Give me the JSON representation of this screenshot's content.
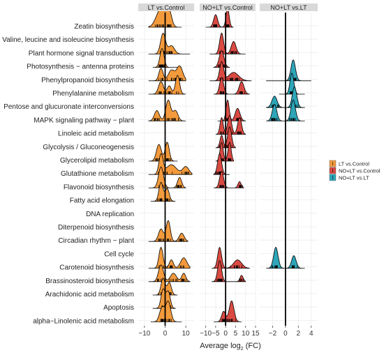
{
  "chart_data": {
    "type": "ridgeline",
    "xlabel": "Average log",
    "xlabel_sub": "2",
    "xlabel_suffix": " (FC)",
    "pathways": [
      "Zeatin biosynthesis",
      "Valine, leucine and isoleucine biosynthesis",
      "Plant hormone signal transduction",
      "Photosynthesis − antenna proteins",
      "Phenylpropanoid biosynthesis",
      "Phenylalanine metabolism",
      "Pentose and glucuronate interconversions",
      "MAPK signaling pathway − plant",
      "Linoleic acid metabolism",
      "Glycolysis / Gluconeogenesis",
      "Glycerolipid metabolism",
      "Glutathione metabolism",
      "Flavonoid biosynthesis",
      "Fatty acid elongation",
      "DNA replication",
      "Diterpenoid biosynthesis",
      "Circadian rhythm − plant",
      "Cell cycle",
      "Carotenoid biosynthesis",
      "Brassinosteroid biosynthesis",
      "Arachidonic acid metabolism",
      "Apoptosis",
      "alpha−Linolenic acid metabolism"
    ],
    "panels": [
      {
        "name": "LT vs.Control",
        "color": "#F39A3C",
        "xlim": [
          -13,
          14
        ],
        "ticks": [
          -10,
          0,
          10
        ],
        "rows": [
          {
            "pathway": 0,
            "peaks": [
              {
                "m": -2,
                "s": 2.2,
                "h": 0.9
              },
              {
                "m": 2,
                "s": 1.2,
                "h": 0.7
              }
            ],
            "range": [
              -8,
              8
            ]
          },
          {
            "pathway": 2,
            "peaks": [
              {
                "m": -1,
                "s": 1.2,
                "h": 1.0
              },
              {
                "m": 3,
                "s": 1.5,
                "h": 0.4
              }
            ],
            "range": [
              -8,
              12
            ]
          },
          {
            "pathway": 3,
            "peaks": [
              {
                "m": -1.5,
                "s": 1.0,
                "h": 0.9
              }
            ],
            "range": [
              -6,
              8
            ]
          },
          {
            "pathway": 4,
            "peaks": [
              {
                "m": -2,
                "s": 1.0,
                "h": 0.6
              },
              {
                "m": 3,
                "s": 1.5,
                "h": 0.5
              },
              {
                "m": 7,
                "s": 1.5,
                "h": 0.7
              }
            ],
            "range": [
              -8,
              10
            ]
          },
          {
            "pathway": 5,
            "peaks": [
              {
                "m": -2,
                "s": 1.2,
                "h": 0.6
              },
              {
                "m": 2,
                "s": 1.0,
                "h": 0.4
              },
              {
                "m": 6,
                "s": 1.0,
                "h": 0.9
              }
            ],
            "range": [
              -8,
              10
            ]
          },
          {
            "pathway": 7,
            "peaks": [
              {
                "m": -4,
                "s": 1.2,
                "h": 0.5
              },
              {
                "m": 1.5,
                "s": 1.2,
                "h": 1.0
              },
              {
                "m": 5,
                "s": 1.2,
                "h": 0.5
              }
            ],
            "range": [
              -8,
              10
            ]
          },
          {
            "pathway": 10,
            "peaks": [
              {
                "m": -3,
                "s": 1.2,
                "h": 0.8
              },
              {
                "m": 1,
                "s": 1.0,
                "h": 0.9
              }
            ],
            "range": [
              -8,
              6
            ]
          },
          {
            "pathway": 11,
            "peaks": [
              {
                "m": -2,
                "s": 1.0,
                "h": 1.0
              },
              {
                "m": 3,
                "s": 2.5,
                "h": 0.5
              },
              {
                "m": 10,
                "s": 1.5,
                "h": 0.4
              }
            ],
            "range": [
              -8,
              13
            ]
          },
          {
            "pathway": 12,
            "peaks": [
              {
                "m": -2,
                "s": 1.2,
                "h": 1.0
              },
              {
                "m": 7,
                "s": 1.0,
                "h": 0.5
              }
            ],
            "range": [
              -8,
              10
            ]
          },
          {
            "pathway": 13,
            "peaks": [
              {
                "m": -2,
                "s": 1.0,
                "h": 0.9
              },
              {
                "m": 1,
                "s": 1.0,
                "h": 0.6
              }
            ],
            "range": [
              -7,
              5
            ]
          },
          {
            "pathway": 16,
            "peaks": [
              {
                "m": -2,
                "s": 1.2,
                "h": 0.6
              },
              {
                "m": 1.5,
                "s": 1.0,
                "h": 1.0
              },
              {
                "m": 8,
                "s": 1.2,
                "h": 0.4
              }
            ],
            "range": [
              -8,
              11
            ]
          },
          {
            "pathway": 18,
            "peaks": [
              {
                "m": -2,
                "s": 1.0,
                "h": 1.0
              },
              {
                "m": 3,
                "s": 1.0,
                "h": 0.4
              },
              {
                "m": 9,
                "s": 1.5,
                "h": 0.5
              }
            ],
            "range": [
              -8,
              12
            ]
          },
          {
            "pathway": 19,
            "peaks": [
              {
                "m": -2,
                "s": 1.2,
                "h": 0.8
              },
              {
                "m": 4,
                "s": 1.5,
                "h": 0.4
              },
              {
                "m": 9,
                "s": 1.0,
                "h": 0.4
              }
            ],
            "range": [
              -8,
              12
            ]
          },
          {
            "pathway": 20,
            "peaks": [
              {
                "m": -1,
                "s": 1.0,
                "h": 0.8
              },
              {
                "m": 2,
                "s": 1.0,
                "h": 0.6
              }
            ],
            "range": [
              -6,
              6
            ]
          },
          {
            "pathway": 21,
            "peaks": [
              {
                "m": -1,
                "s": 1.0,
                "h": 0.9
              },
              {
                "m": 1.5,
                "s": 1.0,
                "h": 0.8
              }
            ],
            "range": [
              -6,
              5
            ]
          },
          {
            "pathway": 22,
            "peaks": [
              {
                "m": -1.5,
                "s": 1.2,
                "h": 0.7
              },
              {
                "m": 1.5,
                "s": 1.2,
                "h": 1.0
              }
            ],
            "range": [
              -7,
              8
            ]
          }
        ]
      },
      {
        "name": "NO+LT vs.Control",
        "color": "#D94A43",
        "xlim": [
          -13,
          15
        ],
        "ticks": [
          -10,
          -5,
          0,
          5,
          10,
          15
        ],
        "rows": [
          {
            "pathway": 0,
            "peaks": [
              {
                "m": -5,
                "s": 1.0,
                "h": 0.6
              },
              {
                "m": 1,
                "s": 0.8,
                "h": 0.9
              }
            ],
            "range": [
              -10,
              4
            ]
          },
          {
            "pathway": 2,
            "peaks": [
              {
                "m": -2,
                "s": 1.0,
                "h": 1.0
              },
              {
                "m": 4,
                "s": 1.2,
                "h": 0.6
              }
            ],
            "range": [
              -8,
              10
            ]
          },
          {
            "pathway": 3,
            "peaks": [
              {
                "m": -2,
                "s": 1.2,
                "h": 0.8
              }
            ],
            "range": [
              -6,
              2
            ]
          },
          {
            "pathway": 4,
            "peaks": [
              {
                "m": -2,
                "s": 1.0,
                "h": 0.9
              },
              {
                "m": 4,
                "s": 2.5,
                "h": 0.4
              }
            ],
            "range": [
              -8,
              13
            ]
          },
          {
            "pathway": 5,
            "peaks": [
              {
                "m": -2,
                "s": 1.0,
                "h": 0.8
              },
              {
                "m": 8,
                "s": 1.2,
                "h": 0.6
              }
            ],
            "range": [
              -6,
              12
            ]
          },
          {
            "pathway": 7,
            "peaks": [
              {
                "m": 1,
                "s": 0.8,
                "h": 1.0
              },
              {
                "m": 6,
                "s": 1.2,
                "h": 0.6
              }
            ],
            "range": [
              -4,
              10
            ]
          },
          {
            "pathway": 8,
            "peaks": [
              {
                "m": -2,
                "s": 0.8,
                "h": 0.8
              },
              {
                "m": 2,
                "s": 1.0,
                "h": 0.9
              },
              {
                "m": 7,
                "s": 1.0,
                "h": 0.8
              }
            ],
            "range": [
              -5,
              10
            ]
          },
          {
            "pathway": 9,
            "peaks": [
              {
                "m": -2,
                "s": 0.8,
                "h": 0.6
              },
              {
                "m": 2,
                "s": 1.0,
                "h": 1.0
              }
            ],
            "range": [
              -5,
              5
            ]
          },
          {
            "pathway": 10,
            "peaks": [
              {
                "m": -2,
                "s": 0.8,
                "h": 0.9
              },
              {
                "m": 2,
                "s": 0.8,
                "h": 0.9
              }
            ],
            "range": [
              -5,
              4
            ]
          },
          {
            "pathway": 11,
            "peaks": [
              {
                "m": -3,
                "s": 1.0,
                "h": 1.0
              }
            ],
            "range": [
              -6,
              2
            ]
          },
          {
            "pathway": 12,
            "peaks": [
              {
                "m": -2,
                "s": 1.0,
                "h": 0.8
              },
              {
                "m": 7,
                "s": 0.8,
                "h": 0.3
              }
            ],
            "range": [
              -6,
              9
            ]
          },
          {
            "pathway": 18,
            "peaks": [
              {
                "m": -3,
                "s": 1.0,
                "h": 1.0
              },
              {
                "m": 6,
                "s": 2.0,
                "h": 0.4
              }
            ],
            "range": [
              -7,
              12
            ]
          },
          {
            "pathway": 19,
            "peaks": [
              {
                "m": -3,
                "s": 1.0,
                "h": 1.0
              },
              {
                "m": 8,
                "s": 0.8,
                "h": 0.3
              }
            ],
            "range": [
              -7,
              10
            ]
          },
          {
            "pathway": 22,
            "peaks": [
              {
                "m": -1,
                "s": 1.0,
                "h": 0.5
              },
              {
                "m": 3,
                "s": 1.2,
                "h": 1.0
              }
            ],
            "range": [
              -6,
              8
            ]
          }
        ]
      },
      {
        "name": "NO+LT vs.LT",
        "color": "#2EA5B8",
        "xlim": [
          -4,
          5
        ],
        "ticks": [
          -2,
          0,
          2,
          4
        ],
        "rows": [
          {
            "pathway": 4,
            "peaks": [
              {
                "m": 1.2,
                "s": 0.35,
                "h": 1.6
              }
            ],
            "range": [
              -3,
              4
            ]
          },
          {
            "pathway": 5,
            "peaks": [
              {
                "m": 1.0,
                "s": 0.3,
                "h": 1.5
              }
            ],
            "range": [
              -1,
              3
            ]
          },
          {
            "pathway": 6,
            "peaks": [
              {
                "m": -1.7,
                "s": 0.4,
                "h": 0.6
              },
              {
                "m": 1.4,
                "s": 0.35,
                "h": 1.1
              }
            ],
            "range": [
              -3,
              3
            ]
          },
          {
            "pathway": 7,
            "peaks": [
              {
                "m": -1.7,
                "s": 0.35,
                "h": 0.8
              },
              {
                "m": 1.2,
                "s": 0.35,
                "h": 1.0
              }
            ],
            "range": [
              -3,
              3
            ]
          },
          {
            "pathway": 18,
            "peaks": [
              {
                "m": -1.5,
                "s": 0.35,
                "h": 1.0
              },
              {
                "m": 1.3,
                "s": 0.35,
                "h": 0.6
              }
            ],
            "range": [
              -3,
              3
            ]
          }
        ]
      }
    ],
    "legend": [
      {
        "label": "LT vs.Control",
        "color": "#F39A3C"
      },
      {
        "label": "NO+LT vs.Control",
        "color": "#D94A43"
      },
      {
        "label": "NO+LT vs.LT",
        "color": "#2EA5B8"
      }
    ],
    "legend_position": "right",
    "grid": true
  }
}
